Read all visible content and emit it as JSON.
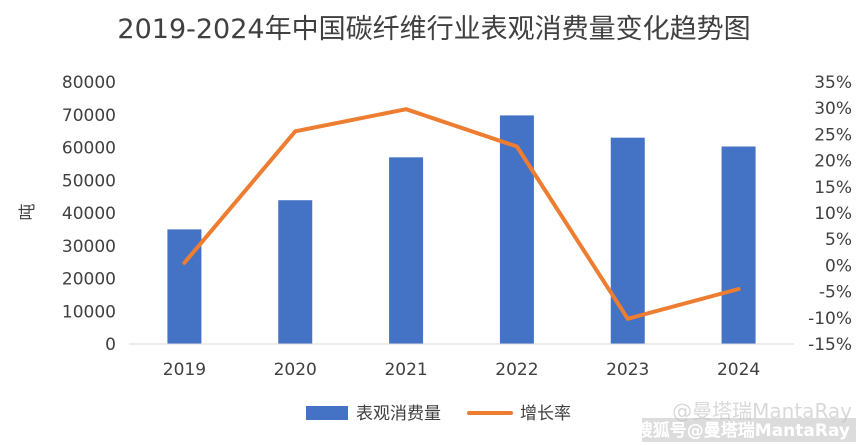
{
  "chart_data": {
    "type": "bar+line",
    "title": "2019-2024年中国碳纤维行业表观消费量变化趋势图",
    "ylabel": "吨",
    "y2label": "",
    "categories": [
      "2019",
      "2020",
      "2021",
      "2022",
      "2023",
      "2024"
    ],
    "series": [
      {
        "name": "表观消费量",
        "type": "bar",
        "axis": "left",
        "color": "#4472C4",
        "values": [
          35000,
          43900,
          57000,
          69800,
          63000,
          60300
        ]
      },
      {
        "name": "增长率",
        "type": "line",
        "axis": "right",
        "color": "#ED7D31",
        "values": [
          0.005,
          0.256,
          0.298,
          0.227,
          -0.102,
          -0.045
        ]
      }
    ],
    "ylim": [
      0,
      80000
    ],
    "y2lim": [
      -0.15,
      0.35
    ],
    "yticks": [
      "0",
      "10000",
      "20000",
      "30000",
      "40000",
      "50000",
      "60000",
      "70000",
      "80000"
    ],
    "y2ticks": [
      "-15%",
      "-10%",
      "-5%",
      "0%",
      "5%",
      "10%",
      "15%",
      "20%",
      "25%",
      "30%",
      "35%"
    ],
    "legend_position": "bottom",
    "grid": false
  },
  "watermark": {
    "faint": "@曼塔瑞MantaRay",
    "strong": "搜狐号@曼塔瑞MantaRay"
  }
}
